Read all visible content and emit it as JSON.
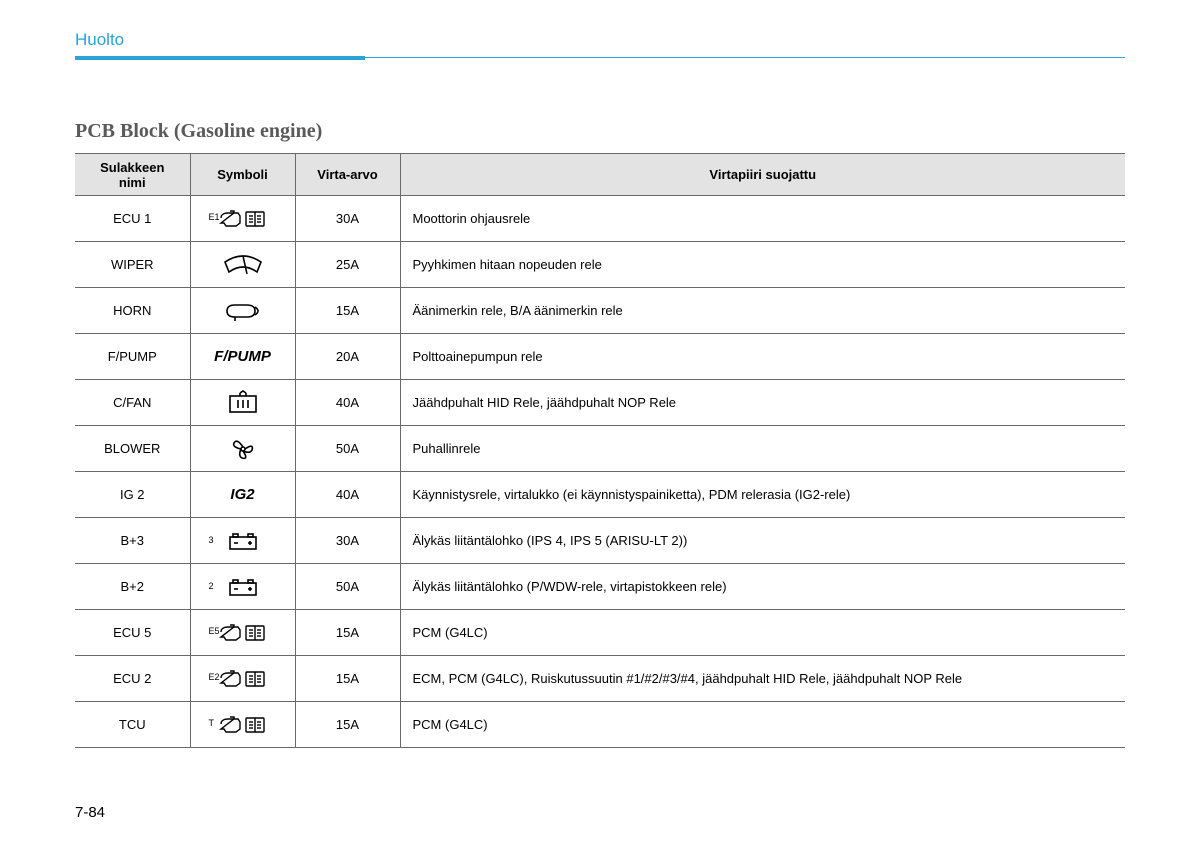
{
  "section_title": "Huolto",
  "table_title": "PCB Block (Gasoline engine)",
  "page_number": "7-84",
  "colors": {
    "accent": "#2ba3d6",
    "header_bg": "#e3e3e3",
    "border": "#6a6a6a",
    "text": "#000000",
    "title_gray": "#5a5a5a"
  },
  "columns": [
    {
      "key": "name",
      "label": "Sulakkeen\nnimi"
    },
    {
      "key": "symbol",
      "label": "Symboli"
    },
    {
      "key": "amp",
      "label": "Virta-arvo"
    },
    {
      "key": "desc",
      "label": "Virtapiiri suojattu"
    }
  ],
  "rows": [
    {
      "name": "ECU 1",
      "symbol": {
        "type": "engine-book",
        "sup": "E1"
      },
      "amp": "30A",
      "desc": "Moottorin ohjausrele"
    },
    {
      "name": "WIPER",
      "symbol": {
        "type": "wiper"
      },
      "amp": "25A",
      "desc": "Pyyhkimen hitaan nopeuden rele"
    },
    {
      "name": "HORN",
      "symbol": {
        "type": "horn"
      },
      "amp": "15A",
      "desc": "Äänimerkin rele, B/A äänimerkin rele"
    },
    {
      "name": "F/PUMP",
      "symbol": {
        "type": "text",
        "text": "F/PUMP"
      },
      "amp": "20A",
      "desc": "Polttoainepumpun rele"
    },
    {
      "name": "C/FAN",
      "symbol": {
        "type": "fanbox"
      },
      "amp": "40A",
      "desc": "Jäähdpuhalt HID Rele, jäähdpuhalt NOP Rele"
    },
    {
      "name": "BLOWER",
      "symbol": {
        "type": "blower"
      },
      "amp": "50A",
      "desc": "Puhallinrele"
    },
    {
      "name": "IG 2",
      "symbol": {
        "type": "text",
        "text": "IG2"
      },
      "amp": "40A",
      "desc": "Käynnistysrele, virtalukko (ei käynnistyspainiketta), PDM relerasia (IG2-rele)"
    },
    {
      "name": "B+3",
      "symbol": {
        "type": "battery",
        "sup": "3"
      },
      "amp": "30A",
      "desc": "Älykäs liitäntälohko (IPS 4, IPS 5 (ARISU-LT 2))"
    },
    {
      "name": "B+2",
      "symbol": {
        "type": "battery",
        "sup": "2"
      },
      "amp": "50A",
      "desc": "Älykäs liitäntälohko (P/WDW-rele, virtapistokkeen rele)"
    },
    {
      "name": "ECU 5",
      "symbol": {
        "type": "engine-book",
        "sup": "E5"
      },
      "amp": "15A",
      "desc": "PCM (G4LC)"
    },
    {
      "name": "ECU 2",
      "symbol": {
        "type": "engine-book",
        "sup": "E2"
      },
      "amp": "15A",
      "desc": "ECM, PCM (G4LC), Ruiskutussuutin #1/#2/#3/#4, jäähdpuhalt HID Rele, jäähdpuhalt NOP Rele"
    },
    {
      "name": "TCU",
      "symbol": {
        "type": "engine-book",
        "sup": "T"
      },
      "amp": "15A",
      "desc": "PCM (G4LC)"
    }
  ]
}
